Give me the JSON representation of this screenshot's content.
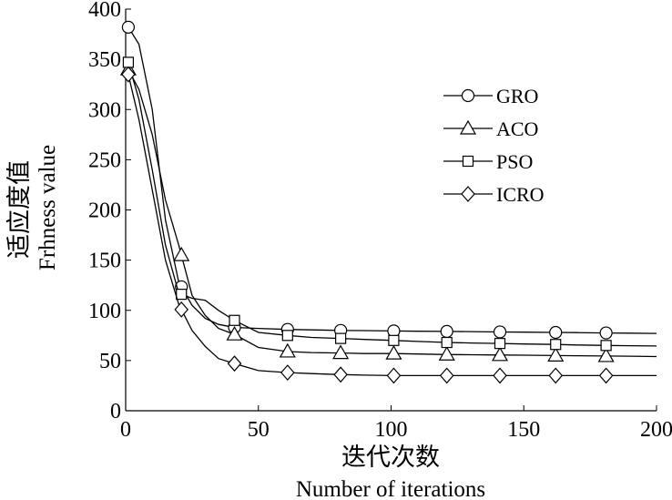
{
  "chart_data": {
    "type": "line",
    "xlabel": "迭代次数",
    "xlabel_en": "Number of iterations",
    "ylabel": "适应度值",
    "ylabel_en": "Frhness value",
    "xlim": [
      0,
      200
    ],
    "ylim": [
      0,
      400
    ],
    "xticks": [
      0,
      50,
      100,
      150,
      200
    ],
    "yticks": [
      0,
      50,
      100,
      150,
      200,
      250,
      300,
      350,
      400
    ],
    "grid": false,
    "legend_position": "top-right",
    "series": [
      {
        "name": "GRO",
        "marker": "circle",
        "x": [
          1,
          5,
          10,
          15,
          20,
          25,
          30,
          35,
          41,
          50,
          61,
          70,
          81,
          90,
          101,
          110,
          121,
          130,
          141,
          150,
          162,
          170,
          181,
          190,
          200
        ],
        "y": [
          382,
          365,
          300,
          190,
          128,
          105,
          92,
          86,
          83,
          82,
          81,
          80.5,
          80,
          79.8,
          79.5,
          79.2,
          79,
          78.8,
          78.5,
          78.3,
          78,
          77.8,
          77.5,
          77.3,
          77
        ]
      },
      {
        "name": "ACO",
        "marker": "triangle",
        "x": [
          1,
          5,
          10,
          15,
          20,
          25,
          30,
          35,
          41,
          50,
          61,
          70,
          81,
          90,
          101,
          110,
          121,
          130,
          141,
          150,
          162,
          170,
          181,
          190,
          200
        ],
        "y": [
          340,
          320,
          275,
          210,
          165,
          115,
          95,
          82,
          76,
          63,
          59,
          58,
          57.5,
          57,
          57,
          56.5,
          56,
          55.8,
          55.5,
          55.3,
          55,
          54.8,
          54.5,
          54.3,
          54
        ]
      },
      {
        "name": "PSO",
        "marker": "square",
        "x": [
          1,
          5,
          10,
          15,
          20,
          25,
          30,
          35,
          41,
          50,
          61,
          70,
          81,
          90,
          101,
          110,
          121,
          130,
          141,
          150,
          162,
          170,
          181,
          190,
          200
        ],
        "y": [
          347,
          310,
          240,
          165,
          117,
          112,
          110,
          100,
          90,
          78,
          75,
          73,
          72,
          71,
          70,
          69,
          68,
          67.5,
          67,
          66.5,
          66,
          65.5,
          65,
          64.8,
          64.5
        ]
      },
      {
        "name": "ICRO",
        "marker": "diamond",
        "x": [
          1,
          5,
          10,
          15,
          20,
          25,
          30,
          35,
          41,
          50,
          61,
          70,
          81,
          90,
          101,
          110,
          121,
          130,
          141,
          150,
          162,
          170,
          181,
          190,
          200
        ],
        "y": [
          335,
          290,
          220,
          150,
          106,
          80,
          64,
          52,
          47,
          40,
          38,
          37,
          36,
          35.5,
          35,
          35,
          35,
          35,
          35,
          35,
          35,
          35,
          35,
          35,
          35
        ]
      }
    ],
    "marker_x": [
      1,
      21,
      41,
      61,
      81,
      101,
      121,
      141,
      162,
      181
    ]
  }
}
